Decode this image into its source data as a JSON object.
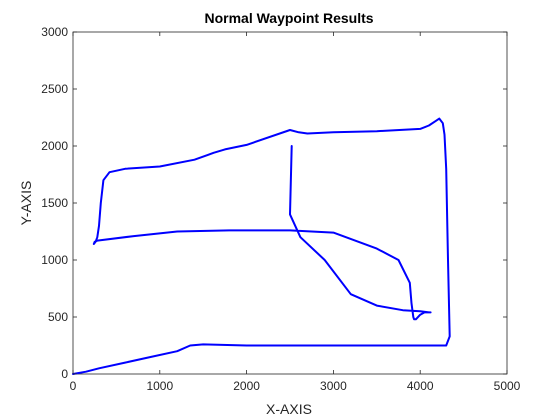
{
  "chart_data": {
    "type": "line",
    "title": "Normal Waypoint Results",
    "xlabel": "X-AXIS",
    "ylabel": "Y-AXIS",
    "xlim": [
      0,
      5000
    ],
    "ylim": [
      0,
      3000
    ],
    "xticks": [
      "0",
      "1000",
      "2000",
      "3000",
      "4000",
      "5000"
    ],
    "yticks": [
      "0",
      "500",
      "1000",
      "1500",
      "2000",
      "2500",
      "3000"
    ],
    "grid": false,
    "line_color": "#0000ff",
    "series": [
      {
        "x": [
          0,
          150,
          300,
          600,
          900,
          1200,
          1350,
          1500,
          2000,
          3000,
          4000,
          4300,
          4340,
          4320,
          4300,
          4280,
          4260,
          4220,
          4180,
          4100,
          4000,
          3500,
          3000,
          2700,
          2600,
          2500,
          2000,
          1750,
          1620,
          1550,
          1400,
          1000,
          600,
          420,
          350,
          320,
          300,
          280,
          260,
          240,
          250,
          280,
          700,
          1200,
          1800,
          2500,
          3000,
          3500,
          3750,
          3880,
          3900,
          3920,
          3930,
          3950,
          4000,
          4050,
          4100,
          4120,
          4100,
          4000,
          3800,
          3500,
          3200,
          2900,
          2620,
          2500,
          2520
        ],
        "y": [
          0,
          20,
          50,
          100,
          150,
          200,
          250,
          260,
          250,
          250,
          250,
          250,
          330,
          1000,
          1800,
          2100,
          2200,
          2240,
          2220,
          2180,
          2150,
          2130,
          2120,
          2110,
          2120,
          2140,
          2010,
          1970,
          1940,
          1920,
          1880,
          1820,
          1800,
          1770,
          1700,
          1500,
          1300,
          1200,
          1160,
          1140,
          1160,
          1170,
          1210,
          1250,
          1260,
          1260,
          1240,
          1100,
          1000,
          800,
          620,
          500,
          480,
          480,
          520,
          540,
          540,
          540,
          540,
          550,
          560,
          600,
          700,
          1000,
          1200,
          1400,
          2000
        ]
      }
    ]
  }
}
